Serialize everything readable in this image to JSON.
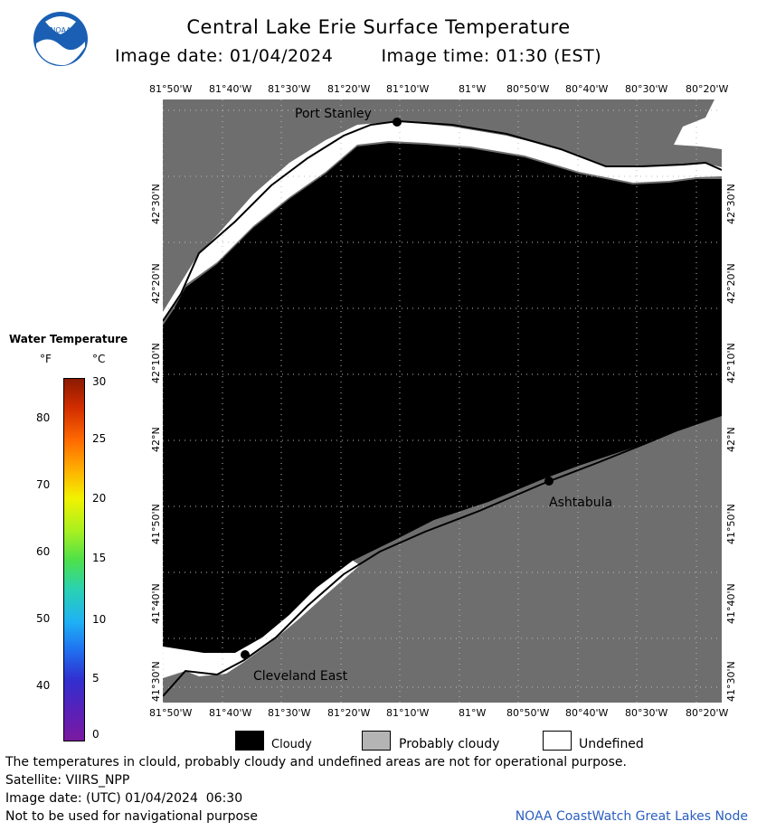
{
  "header": {
    "title": "Central Lake Erie Surface Temperature",
    "image_date": "Image date: 01/04/2024",
    "image_time": "Image time: 01:30 (EST)"
  },
  "logo": {
    "text": "NOAA",
    "icon": "noaa-logo-icon"
  },
  "map": {
    "top_lon_labels": [
      "81°50'W",
      "81°40'W",
      "81°30'W",
      "81°20'W",
      "81°10'W",
      "81°W",
      "80°50'W",
      "80°40'W",
      "80°30'W",
      "80°20'W"
    ],
    "bottom_lon_labels": [
      "81°50'W",
      "81°40'W",
      "81°30'W",
      "81°20'W",
      "81°10'W",
      "81°W",
      "80°50'W",
      "80°40'W",
      "80°30'W",
      "80°20'W"
    ],
    "lat_labels": [
      "42°30'N",
      "42°20'N",
      "42°10'N",
      "42°N",
      "41°50'N",
      "41°40'N",
      "41°30'N"
    ],
    "places": [
      "Port Stanley",
      "Ashtabula",
      "Cleveland East"
    ],
    "colors": {
      "land": "#6e6e6e",
      "cloud": "#000000",
      "undefined": "#ffffff",
      "grid": "#bdbdbd"
    }
  },
  "legend": {
    "title": "Water Temperature",
    "unit_f": "°F",
    "unit_c": "°C",
    "f_labels": [
      "80",
      "70",
      "60",
      "50",
      "40"
    ],
    "c_labels": [
      "30",
      "25",
      "20",
      "15",
      "10",
      "5",
      "0"
    ]
  },
  "key": {
    "cloudy": "Cloudy",
    "probably_cloudy": "Probably cloudy",
    "undefined": "Undefined"
  },
  "footer": {
    "note1": "The temperatures in clould, probably cloudy and undefined areas are not for operational purpose.",
    "satellite": "Satellite: VIIRS_NPP",
    "utc_date": "Image date: (UTC) 01/04/2024  06:30",
    "nav_note": "Not to be used for navigational purpose",
    "credit": "NOAA CoastWatch Great Lakes Node"
  }
}
